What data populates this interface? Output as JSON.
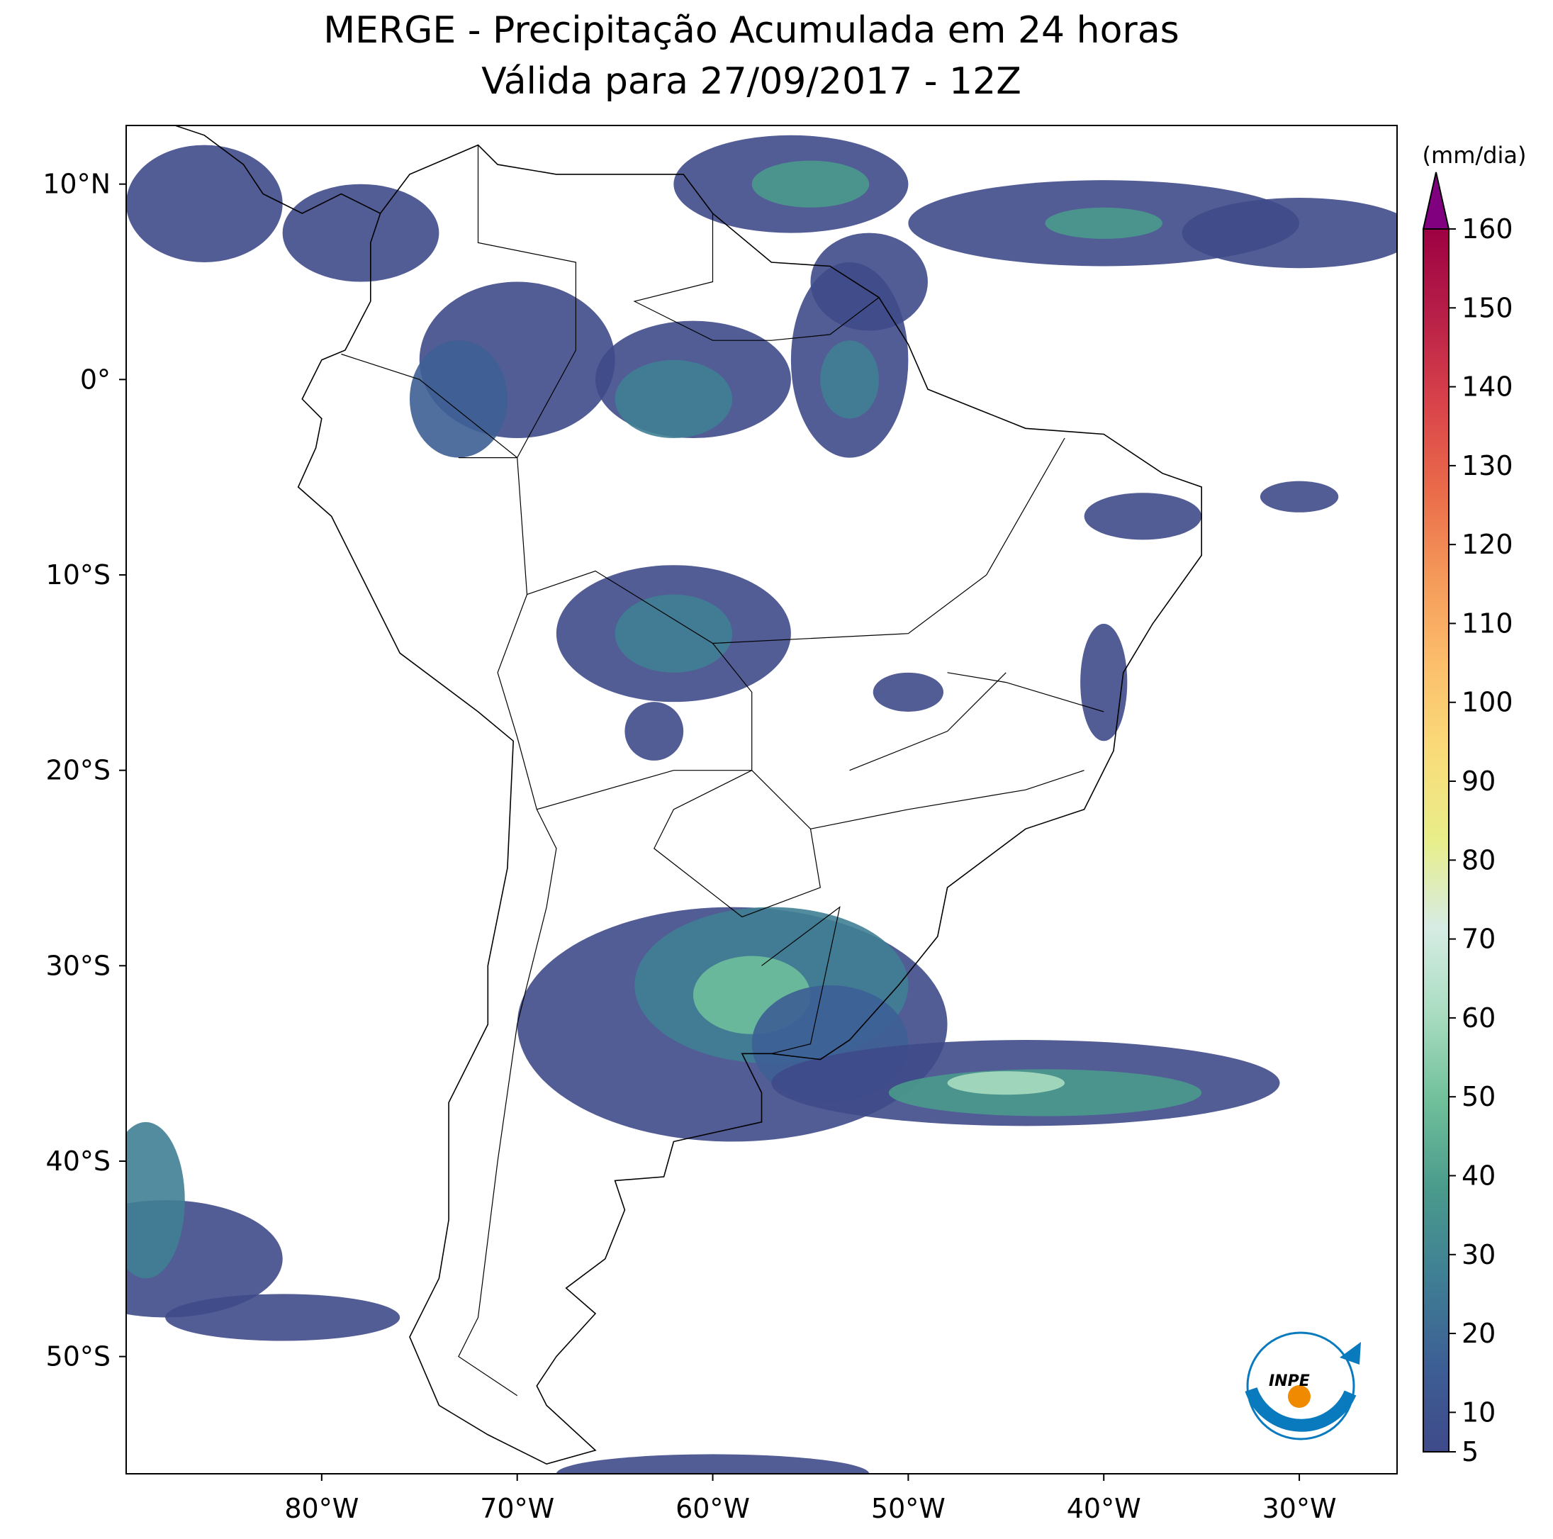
{
  "title": [
    "MERGE - Precipitação Acumulada em 24 horas",
    "Válida para 27/09/2017 - 12Z"
  ],
  "map": {
    "xlim": [
      -90,
      -25
    ],
    "ylim": [
      -56,
      13
    ],
    "xticks": [
      {
        "value": -80,
        "label": "80°W"
      },
      {
        "value": -70,
        "label": "70°W"
      },
      {
        "value": -60,
        "label": "60°W"
      },
      {
        "value": -50,
        "label": "50°W"
      },
      {
        "value": -40,
        "label": "40°W"
      },
      {
        "value": -30,
        "label": "30°W"
      }
    ],
    "yticks": [
      {
        "value": 10,
        "label": "10°N"
      },
      {
        "value": 0,
        "label": "0°"
      },
      {
        "value": -10,
        "label": "10°S"
      },
      {
        "value": -20,
        "label": "20°S"
      },
      {
        "value": -30,
        "label": "30°S"
      },
      {
        "value": -40,
        "label": "40°S"
      },
      {
        "value": -50,
        "label": "50°S"
      }
    ]
  },
  "colorbar": {
    "unit": "(mm/dia)",
    "lim": [
      5,
      160
    ],
    "ticks": [
      5,
      10,
      20,
      30,
      40,
      50,
      60,
      70,
      80,
      90,
      100,
      110,
      120,
      130,
      140,
      150,
      160
    ],
    "colors": [
      "#3f4a8a",
      "#3d5f95",
      "#3f7f94",
      "#4a9a8c",
      "#6fbf9b",
      "#a8dcc0",
      "#d6ece4",
      "#e8ee8a",
      "#f9dc7a",
      "#fcbf6c",
      "#f59a5a",
      "#ea6b4a",
      "#d9434a",
      "#b81f48",
      "#9e0142"
    ],
    "extend_color": "#800080"
  },
  "logo": "INPE"
}
